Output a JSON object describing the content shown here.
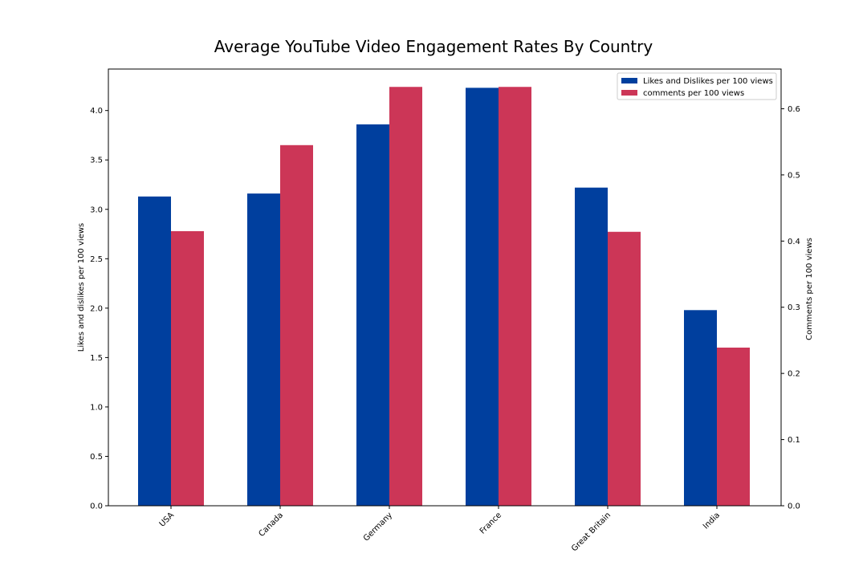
{
  "chart_data": {
    "type": "bar",
    "title": "Average YouTube Video Engagement Rates By Country",
    "categories": [
      "USA",
      "Canada",
      "Germany",
      "France",
      "Great Britain",
      "India"
    ],
    "series": [
      {
        "name": "Likes and Dislikes per 100 views",
        "axis": "left",
        "color": "#003f9e",
        "values": [
          3.13,
          3.16,
          3.86,
          4.23,
          3.22,
          1.98
        ]
      },
      {
        "name": "comments per 100 views",
        "axis": "right",
        "color": "#cc3657",
        "values": [
          0.415,
          0.545,
          0.633,
          0.633,
          0.414,
          0.239
        ]
      }
    ],
    "ylabel": "Likes and dislikes per 100 views",
    "ylabel_right": "Comments per 100 views",
    "ylim": [
      0,
      4.42
    ],
    "ylim_right": [
      0,
      0.66
    ],
    "yticks": [
      0.0,
      0.5,
      1.0,
      1.5,
      2.0,
      2.5,
      3.0,
      3.5,
      4.0
    ],
    "yticks_right": [
      0.0,
      0.1,
      0.2,
      0.3,
      0.4,
      0.5,
      0.6
    ],
    "grid": false,
    "legend_position": "top-right"
  }
}
